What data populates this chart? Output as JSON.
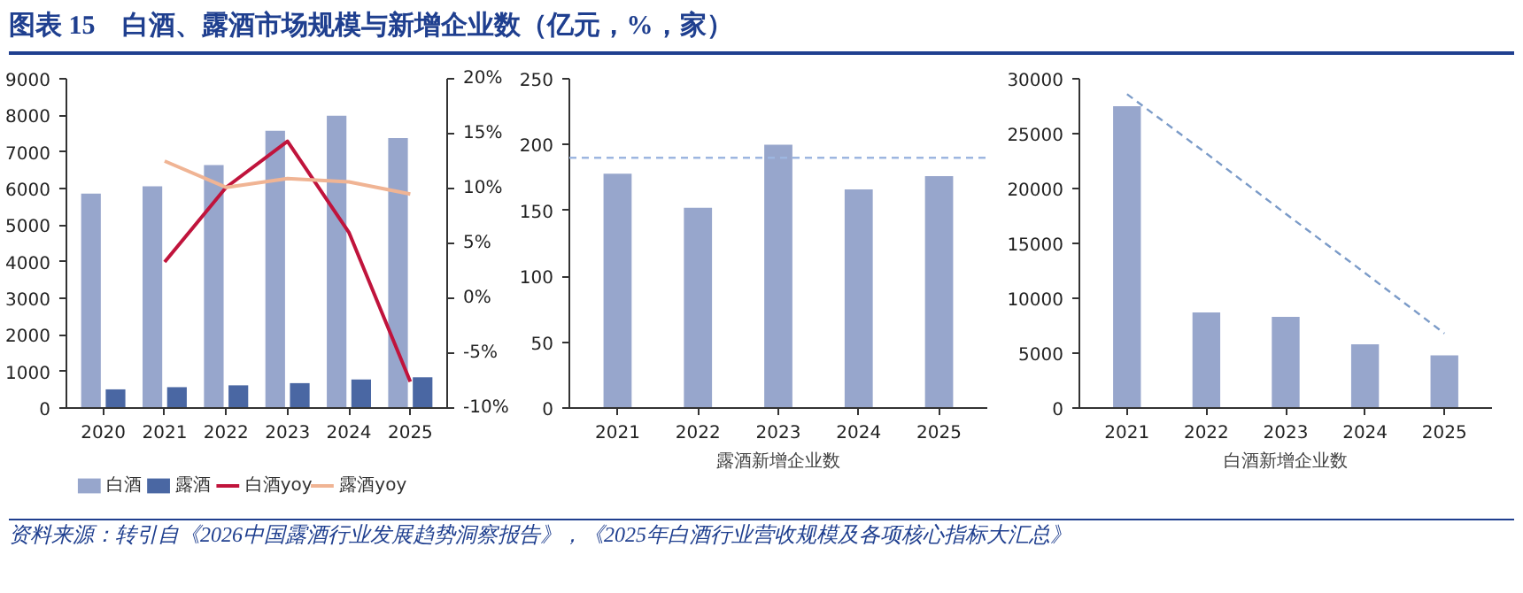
{
  "chart_data": [
    {
      "type": "bar",
      "title": "图表 15　白酒、露酒市场规模与新增企业数（亿元，%，家）",
      "annotations": [
        "资料来源：转引自《2026中国露酒行业发展趋势洞察报告》，《2025年白酒行业营收规模及各项核心指标大汇总》"
      ],
      "categories": [
        "2020",
        "2021",
        "2022",
        "2023",
        "2024",
        "2025"
      ],
      "series": [
        {
          "name": "白酒",
          "type": "bar",
          "color": "#97a6cc",
          "values": [
            5860,
            6060,
            6640,
            7580,
            7990,
            7380
          ]
        },
        {
          "name": "露酒",
          "type": "bar",
          "color": "#4a67a3",
          "values": [
            510,
            570,
            620,
            680,
            780,
            840
          ]
        },
        {
          "name": "白酒yoy",
          "type": "line",
          "axis": "y2",
          "color": "#c0143c",
          "values": [
            null,
            3.3,
            10.1,
            14.3,
            6.0,
            -7.6
          ]
        },
        {
          "name": "露酒yoy",
          "type": "line",
          "axis": "y2",
          "color": "#f0b494",
          "values": [
            null,
            12.5,
            10.1,
            10.9,
            10.6,
            9.5
          ]
        }
      ],
      "ylim": [
        0,
        9000
      ],
      "yticks": [
        0,
        1000,
        2000,
        3000,
        4000,
        5000,
        6000,
        7000,
        8000,
        9000
      ],
      "y2lim": [
        -10,
        20
      ],
      "y2ticks": [
        {
          "value": -10,
          "label": "-10%"
        },
        {
          "value": -5,
          "label": "-5%"
        },
        {
          "value": 0,
          "label": "0%"
        },
        {
          "value": 5,
          "label": "5%"
        },
        {
          "value": 10,
          "label": "10%"
        },
        {
          "value": 15,
          "label": "15%"
        },
        {
          "value": 20,
          "label": "20%"
        }
      ],
      "legend": "bottom"
    },
    {
      "type": "bar",
      "xlabel": "露酒新增企业数",
      "categories": [
        "2021",
        "2022",
        "2023",
        "2024",
        "2025"
      ],
      "series": [
        {
          "color": "#97a6cc",
          "values": [
            178,
            152,
            200,
            166,
            176
          ]
        }
      ],
      "ylim": [
        0,
        250
      ],
      "yticks": [
        0,
        50,
        100,
        150,
        200,
        250
      ],
      "ref_lines": [
        {
          "axis": "y",
          "value": 190,
          "color": "#9db6e0",
          "line_style": "dashed"
        }
      ]
    },
    {
      "type": "bar",
      "xlabel": "白酒新增企业数",
      "categories": [
        "2021",
        "2022",
        "2023",
        "2024",
        "2025"
      ],
      "series": [
        {
          "type": "bar",
          "color": "#97a6cc",
          "values": [
            27500,
            8700,
            8300,
            5800,
            4800
          ]
        },
        {
          "type": "line",
          "color": "#7b9bc8",
          "line_style": "dashed",
          "values": [
            28600,
            23200,
            17700,
            12300,
            6800
          ]
        }
      ],
      "ylim": [
        0,
        30000
      ],
      "yticks": [
        0,
        5000,
        10000,
        15000,
        20000,
        25000,
        30000
      ]
    }
  ]
}
